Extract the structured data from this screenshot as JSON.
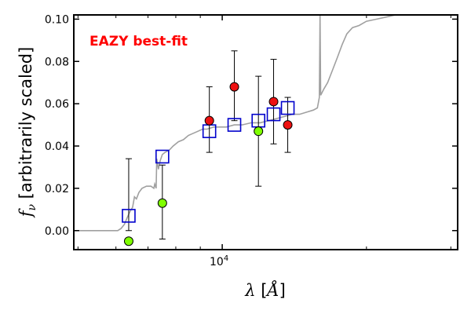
{
  "chart_data": {
    "type": "scatter",
    "xscale": "log",
    "xlim": [
      4900,
      31000
    ],
    "ylim": [
      -0.009,
      0.102
    ],
    "xticks": [
      10000
    ],
    "xtick_labels": [
      {
        "base": "10",
        "exp": "4"
      }
    ],
    "yticks": [
      0.0,
      0.02,
      0.04,
      0.06,
      0.08,
      0.1
    ],
    "ytick_labels": [
      "0.00",
      "0.02",
      "0.04",
      "0.06",
      "0.08",
      "0.10"
    ],
    "xlabel": {
      "lambda": "λ",
      "text": " [",
      "unit": "Å",
      "close": "]"
    },
    "ylabel": {
      "symbol": "f",
      "sub": "ν",
      "text": " [arbitrarily scaled]"
    },
    "annotation": {
      "text": "EAZY best-fit",
      "color": "#ff0000"
    },
    "colors": {
      "template": "#a0a0a0",
      "model": "#0000cc",
      "green": "#7fff00",
      "red": "#ee1111",
      "errorbar": "#000000"
    },
    "template_spectrum": [
      [
        4900,
        0.0
      ],
      [
        6050,
        0.0
      ],
      [
        6150,
        0.001
      ],
      [
        6250,
        0.003
      ],
      [
        6330,
        0.006
      ],
      [
        6420,
        0.009
      ],
      [
        6500,
        0.011
      ],
      [
        6560,
        0.016
      ],
      [
        6620,
        0.015
      ],
      [
        6700,
        0.018
      ],
      [
        6800,
        0.02
      ],
      [
        6950,
        0.021
      ],
      [
        7100,
        0.021
      ],
      [
        7200,
        0.02
      ],
      [
        7230,
        0.022
      ],
      [
        7280,
        0.02
      ],
      [
        7300,
        0.034
      ],
      [
        7360,
        0.029
      ],
      [
        7420,
        0.033
      ],
      [
        7500,
        0.036
      ],
      [
        7600,
        0.037
      ],
      [
        7750,
        0.038
      ],
      [
        7900,
        0.04
      ],
      [
        8100,
        0.042
      ],
      [
        8300,
        0.043
      ],
      [
        8500,
        0.045
      ],
      [
        8700,
        0.046
      ],
      [
        8900,
        0.047
      ],
      [
        9100,
        0.048
      ],
      [
        9300,
        0.048
      ],
      [
        9600,
        0.049
      ],
      [
        9900,
        0.049
      ],
      [
        10200,
        0.049
      ],
      [
        10600,
        0.05
      ],
      [
        11000,
        0.05
      ],
      [
        11500,
        0.051
      ],
      [
        12000,
        0.051
      ],
      [
        12500,
        0.052
      ],
      [
        13000,
        0.053
      ],
      [
        13500,
        0.054
      ],
      [
        14000,
        0.055
      ],
      [
        14500,
        0.055
      ],
      [
        15000,
        0.056
      ],
      [
        15500,
        0.057
      ],
      [
        15800,
        0.058
      ],
      [
        15950,
        0.063
      ],
      [
        16000,
        0.102
      ],
      [
        16050,
        0.064
      ],
      [
        16300,
        0.067
      ],
      [
        16600,
        0.07
      ],
      [
        17000,
        0.076
      ],
      [
        17400,
        0.082
      ],
      [
        17800,
        0.088
      ],
      [
        18200,
        0.093
      ],
      [
        18700,
        0.096
      ],
      [
        19300,
        0.097
      ],
      [
        20000,
        0.099
      ],
      [
        21000,
        0.1
      ],
      [
        22000,
        0.101
      ],
      [
        23000,
        0.102
      ],
      [
        31000,
        0.102
      ]
    ],
    "model_photometry": [
      {
        "x": 6380,
        "y": 0.007
      },
      {
        "x": 7500,
        "y": 0.035
      },
      {
        "x": 9400,
        "y": 0.047
      },
      {
        "x": 10600,
        "y": 0.05
      },
      {
        "x": 11900,
        "y": 0.052
      },
      {
        "x": 12800,
        "y": 0.055
      },
      {
        "x": 13700,
        "y": 0.058
      }
    ],
    "observed": [
      {
        "x": 6380,
        "y": -0.005,
        "yerr_low": 0.0,
        "yerr_high": 0.0,
        "color": "green"
      },
      {
        "x": 6380,
        "y": 0.0,
        "yerr_low": 0.0,
        "yerr_high": 0.034,
        "color": "none"
      },
      {
        "x": 7500,
        "y": 0.013,
        "yerr_low": 0.017,
        "yerr_high": 0.018,
        "color": "green"
      },
      {
        "x": 9400,
        "y": 0.052,
        "yerr_low": 0.015,
        "yerr_high": 0.016,
        "color": "red"
      },
      {
        "x": 10600,
        "y": 0.068,
        "yerr_low": 0.016,
        "yerr_high": 0.017,
        "color": "red"
      },
      {
        "x": 11900,
        "y": 0.047,
        "yerr_low": 0.026,
        "yerr_high": 0.026,
        "color": "green"
      },
      {
        "x": 12800,
        "y": 0.061,
        "yerr_low": 0.02,
        "yerr_high": 0.02,
        "color": "red"
      },
      {
        "x": 13700,
        "y": 0.05,
        "yerr_low": 0.013,
        "yerr_high": 0.013,
        "color": "red"
      }
    ]
  }
}
